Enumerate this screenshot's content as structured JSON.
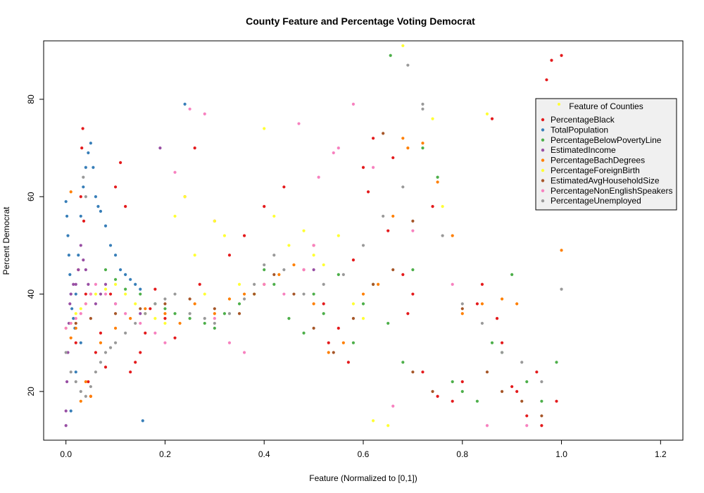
{
  "chart_data": {
    "type": "scatter",
    "title": "County Feature and Percentage Voting Democrat",
    "xlabel": "Feature (Normalized to [0,1])",
    "ylabel": "Percent Democrat",
    "xlim": [
      -0.045,
      1.245
    ],
    "ylim": [
      10,
      92
    ],
    "x_ticks": [
      "0.0",
      "0.2",
      "0.4",
      "0.6",
      "0.8",
      "1.0",
      "1.2"
    ],
    "x_tick_values": [
      0,
      0.2,
      0.4,
      0.6,
      0.8,
      1.0,
      1.2
    ],
    "y_ticks": [
      "20",
      "40",
      "60",
      "80"
    ],
    "y_tick_values": [
      20,
      40,
      60,
      80
    ],
    "grid": false,
    "legend": {
      "title": "Feature of Counties",
      "placement": "top-right",
      "title_marker_color": "#FFFF33"
    },
    "series": [
      {
        "name": "PercentageBlack",
        "color": "#E41A1C",
        "x": [
          0.02,
          0.025,
          0.03,
          0.032,
          0.034,
          0.036,
          0.04,
          0.045,
          0.05,
          0.06,
          0.07,
          0.08,
          0.09,
          0.1,
          0.11,
          0.12,
          0.13,
          0.14,
          0.15,
          0.16,
          0.17,
          0.18,
          0.2,
          0.22,
          0.24,
          0.26,
          0.27,
          0.3,
          0.33,
          0.36,
          0.4,
          0.44,
          0.48,
          0.5,
          0.52,
          0.55,
          0.58,
          0.6,
          0.62,
          0.65,
          0.68,
          0.7,
          0.72,
          0.75,
          0.78,
          0.8,
          0.83,
          0.86,
          0.88,
          0.9,
          0.93,
          0.96,
          0.97,
          0.98,
          0.99,
          1.0,
          0.53,
          0.57,
          0.61,
          0.66,
          0.69,
          0.74,
          0.84,
          0.87,
          0.91,
          0.95
        ],
        "y": [
          30,
          45,
          60,
          70,
          74,
          55,
          40,
          22,
          19,
          28,
          32,
          25,
          40,
          62,
          67,
          58,
          24,
          26,
          28,
          32,
          37,
          41,
          35,
          31,
          60,
          70,
          42,
          55,
          48,
          52,
          58,
          62,
          45,
          50,
          38,
          33,
          47,
          66,
          72,
          53,
          44,
          40,
          24,
          19,
          18,
          22,
          38,
          76,
          30,
          21,
          15,
          13,
          84,
          88,
          18,
          89,
          30,
          26,
          61,
          68,
          36,
          58,
          42,
          35,
          20,
          24
        ]
      },
      {
        "name": "TotalPopulation",
        "color": "#377EB8",
        "x": [
          0.0,
          0.002,
          0.004,
          0.006,
          0.008,
          0.01,
          0.012,
          0.015,
          0.018,
          0.02,
          0.025,
          0.03,
          0.035,
          0.04,
          0.045,
          0.05,
          0.055,
          0.06,
          0.065,
          0.07,
          0.08,
          0.09,
          0.1,
          0.11,
          0.12,
          0.13,
          0.14,
          0.15,
          0.155,
          0.24,
          0.01,
          0.02,
          0.03
        ],
        "y": [
          59,
          56,
          52,
          48,
          44,
          40,
          37,
          35,
          33,
          40,
          48,
          56,
          62,
          66,
          69,
          71,
          66,
          60,
          58,
          57,
          54,
          50,
          48,
          45,
          44,
          43,
          42,
          41,
          14,
          79,
          16,
          24,
          30
        ]
      },
      {
        "name": "PercentageBelowPovertyLine",
        "color": "#4DAF4A",
        "x": [
          0.08,
          0.1,
          0.12,
          0.15,
          0.18,
          0.2,
          0.22,
          0.25,
          0.28,
          0.3,
          0.32,
          0.35,
          0.38,
          0.4,
          0.42,
          0.45,
          0.48,
          0.5,
          0.52,
          0.55,
          0.58,
          0.6,
          0.62,
          0.65,
          0.68,
          0.7,
          0.72,
          0.75,
          0.78,
          0.8,
          0.83,
          0.86,
          0.88,
          0.9,
          0.93,
          0.96,
          0.99,
          0.655
        ],
        "y": [
          45,
          43,
          41,
          40,
          38,
          37,
          36,
          35,
          34,
          33,
          36,
          38,
          40,
          45,
          42,
          35,
          32,
          40,
          36,
          44,
          30,
          38,
          42,
          34,
          26,
          45,
          70,
          64,
          22,
          20,
          18,
          30,
          28,
          44,
          22,
          18,
          26,
          89
        ]
      },
      {
        "name": "EstimatedIncome",
        "color": "#984EA3",
        "x": [
          0.0,
          0.0,
          0.002,
          0.004,
          0.006,
          0.008,
          0.01,
          0.015,
          0.02,
          0.025,
          0.03,
          0.035,
          0.04,
          0.045,
          0.05,
          0.06,
          0.07,
          0.08,
          0.1,
          0.15,
          0.19,
          0.5
        ],
        "y": [
          13,
          16,
          22,
          28,
          34,
          38,
          40,
          42,
          42,
          45,
          50,
          47,
          45,
          42,
          40,
          38,
          40,
          42,
          38,
          36,
          70,
          45
        ]
      },
      {
        "name": "PercentageBachDegrees",
        "color": "#FF7F00",
        "x": [
          0.01,
          0.02,
          0.03,
          0.05,
          0.07,
          0.1,
          0.13,
          0.16,
          0.2,
          0.23,
          0.26,
          0.3,
          0.33,
          0.36,
          0.4,
          0.43,
          0.46,
          0.5,
          0.53,
          0.56,
          0.6,
          0.63,
          0.66,
          0.69,
          0.72,
          0.75,
          0.78,
          0.8,
          0.84,
          0.88,
          0.91,
          1.0,
          0.01,
          0.04,
          0.68
        ],
        "y": [
          31,
          33,
          18,
          19,
          30,
          33,
          35,
          37,
          36,
          34,
          38,
          36,
          39,
          40,
          42,
          44,
          46,
          38,
          28,
          30,
          40,
          42,
          56,
          70,
          71,
          63,
          52,
          36,
          38,
          39,
          38,
          49,
          61,
          22,
          72
        ]
      },
      {
        "name": "PercentageForeignBirth",
        "color": "#FFFF33",
        "x": [
          0.0,
          0.01,
          0.02,
          0.03,
          0.04,
          0.06,
          0.08,
          0.1,
          0.12,
          0.14,
          0.16,
          0.18,
          0.2,
          0.22,
          0.24,
          0.26,
          0.28,
          0.3,
          0.32,
          0.35,
          0.38,
          0.4,
          0.42,
          0.45,
          0.48,
          0.5,
          0.52,
          0.55,
          0.58,
          0.6,
          0.62,
          0.65,
          0.68,
          0.74,
          0.76,
          0.85
        ],
        "y": [
          33,
          34,
          36,
          37,
          38,
          40,
          41,
          42,
          40,
          38,
          36,
          35,
          34,
          56,
          60,
          48,
          40,
          55,
          52,
          42,
          40,
          74,
          56,
          50,
          53,
          48,
          46,
          52,
          38,
          35,
          14,
          13,
          91,
          76,
          58,
          77
        ]
      },
      {
        "name": "EstimatedAvgHouseholdSize",
        "color": "#A65628",
        "x": [
          0.02,
          0.05,
          0.1,
          0.15,
          0.2,
          0.25,
          0.3,
          0.35,
          0.38,
          0.42,
          0.46,
          0.5,
          0.54,
          0.58,
          0.62,
          0.66,
          0.7,
          0.74,
          0.8,
          0.85,
          0.88,
          0.92,
          0.96,
          0.64,
          0.7
        ],
        "y": [
          34,
          35,
          36,
          37,
          38,
          39,
          37,
          36,
          40,
          44,
          40,
          33,
          28,
          35,
          42,
          45,
          24,
          20,
          37,
          24,
          20,
          18,
          15,
          73,
          55
        ]
      },
      {
        "name": "PercentageNonEnglishSpeakers",
        "color": "#F781BF",
        "x": [
          0.0,
          0.01,
          0.02,
          0.03,
          0.04,
          0.05,
          0.06,
          0.08,
          0.1,
          0.12,
          0.15,
          0.18,
          0.2,
          0.22,
          0.25,
          0.28,
          0.3,
          0.33,
          0.36,
          0.4,
          0.44,
          0.48,
          0.5,
          0.54,
          0.58,
          0.62,
          0.66,
          0.7,
          0.78,
          0.85,
          0.93,
          0.47,
          0.51,
          0.55
        ],
        "y": [
          33,
          34,
          35,
          36,
          38,
          40,
          42,
          40,
          38,
          36,
          34,
          32,
          30,
          65,
          78,
          77,
          35,
          30,
          28,
          42,
          40,
          45,
          50,
          69,
          79,
          66,
          17,
          53,
          42,
          13,
          13,
          75,
          64,
          70
        ]
      },
      {
        "name": "PercentageUnemployed",
        "color": "#999999",
        "x": [
          0.0,
          0.01,
          0.02,
          0.03,
          0.04,
          0.05,
          0.06,
          0.07,
          0.08,
          0.09,
          0.1,
          0.12,
          0.14,
          0.16,
          0.18,
          0.2,
          0.22,
          0.25,
          0.28,
          0.3,
          0.33,
          0.36,
          0.38,
          0.4,
          0.42,
          0.44,
          0.48,
          0.52,
          0.56,
          0.6,
          0.64,
          0.68,
          0.72,
          0.76,
          0.8,
          0.84,
          0.88,
          0.92,
          0.96,
          1.0,
          0.69,
          0.72,
          0.035,
          0.04
        ],
        "y": [
          28,
          24,
          22,
          20,
          19,
          21,
          24,
          26,
          28,
          29,
          30,
          32,
          34,
          36,
          38,
          39,
          40,
          36,
          35,
          34,
          36,
          39,
          42,
          46,
          48,
          45,
          40,
          42,
          44,
          50,
          56,
          62,
          79,
          52,
          38,
          34,
          28,
          26,
          22,
          41,
          87,
          78,
          64,
          60
        ]
      }
    ]
  }
}
